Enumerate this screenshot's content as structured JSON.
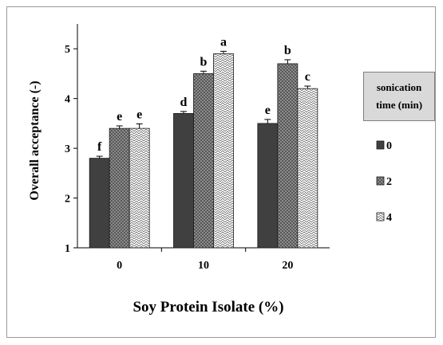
{
  "chart_data": {
    "type": "bar",
    "xlabel": "Soy Protein Isolate (%)",
    "ylabel": "Overall acceptance (-)",
    "categories": [
      "0",
      "10",
      "20"
    ],
    "ylim": [
      1,
      5.5
    ],
    "yticks": [
      1,
      2,
      3,
      4,
      5
    ],
    "grid": false,
    "legend_title": "sonication time (min)",
    "legend_position": "right",
    "series": [
      {
        "name": "0",
        "values": [
          2.8,
          3.7,
          3.5
        ],
        "errors": [
          0.04,
          0.04,
          0.08
        ],
        "letters": [
          "f",
          "d",
          "e"
        ],
        "color": "#404040",
        "pattern": "solid-dark"
      },
      {
        "name": "2",
        "values": [
          3.4,
          4.5,
          4.7
        ],
        "errors": [
          0.05,
          0.05,
          0.08
        ],
        "letters": [
          "e",
          "b",
          "b"
        ],
        "color": "#8c8c8c",
        "pattern": "crosshatch"
      },
      {
        "name": "4",
        "values": [
          3.4,
          4.9,
          4.2
        ],
        "errors": [
          0.09,
          0.05,
          0.05
        ],
        "letters": [
          "e",
          "a",
          "c"
        ],
        "color": "#ffffff",
        "pattern": "zigzag"
      }
    ]
  }
}
